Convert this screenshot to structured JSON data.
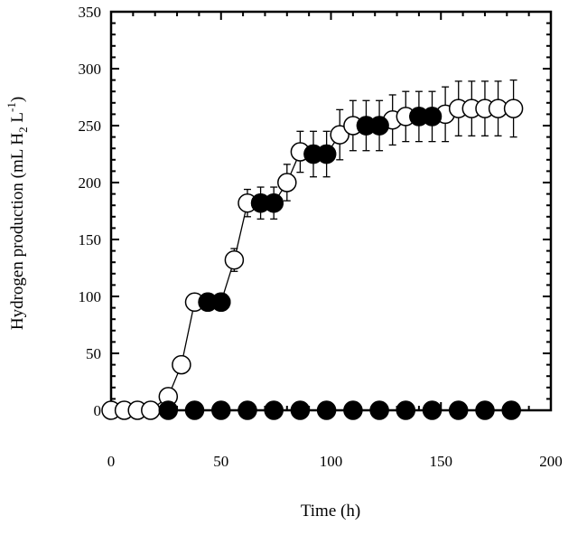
{
  "chart_data": {
    "type": "scatter",
    "xlabel": "Time (h)",
    "ylabel": {
      "prefix": "Hydrogen production (mL H",
      "sub": "2",
      "mid": " L",
      "sup": "-1",
      "suffix": ")"
    },
    "xlim": [
      0,
      200
    ],
    "ylim": [
      0,
      350
    ],
    "xticks": [
      0,
      50,
      100,
      150,
      200
    ],
    "yticks": [
      0,
      50,
      100,
      150,
      200,
      250,
      300,
      350
    ],
    "xtick_labels": [
      "0",
      "50",
      "100",
      "150",
      "200"
    ],
    "ytick_labels": [
      "0",
      "50",
      "100",
      "150",
      "200",
      "250",
      "300",
      "350"
    ],
    "grid": false,
    "legend": "none",
    "series": [
      {
        "marker": "open-circle",
        "line": true,
        "error_bars": true,
        "points": [
          {
            "x": 0,
            "y": 0,
            "err": 0
          },
          {
            "x": 6,
            "y": 0,
            "err": 0
          },
          {
            "x": 12,
            "y": 0,
            "err": 0
          },
          {
            "x": 18,
            "y": 0,
            "err": 0
          },
          {
            "x": 26,
            "y": 12,
            "err": 4
          },
          {
            "x": 32,
            "y": 40,
            "err": 5
          },
          {
            "x": 38,
            "y": 95,
            "err": 5
          },
          {
            "x": 44,
            "y": 95,
            "err": 5
          },
          {
            "x": 50,
            "y": 95,
            "err": 5
          },
          {
            "x": 56,
            "y": 132,
            "err": 10
          },
          {
            "x": 62,
            "y": 182,
            "err": 12
          },
          {
            "x": 68,
            "y": 182,
            "err": 14
          },
          {
            "x": 74,
            "y": 182,
            "err": 14
          },
          {
            "x": 80,
            "y": 200,
            "err": 16
          },
          {
            "x": 86,
            "y": 227,
            "err": 18
          },
          {
            "x": 92,
            "y": 225,
            "err": 20
          },
          {
            "x": 98,
            "y": 225,
            "err": 20
          },
          {
            "x": 104,
            "y": 242,
            "err": 22
          },
          {
            "x": 110,
            "y": 250,
            "err": 22
          },
          {
            "x": 116,
            "y": 250,
            "err": 22
          },
          {
            "x": 122,
            "y": 250,
            "err": 22
          },
          {
            "x": 128,
            "y": 255,
            "err": 22
          },
          {
            "x": 134,
            "y": 258,
            "err": 22
          },
          {
            "x": 140,
            "y": 258,
            "err": 22
          },
          {
            "x": 146,
            "y": 258,
            "err": 22
          },
          {
            "x": 152,
            "y": 260,
            "err": 24
          },
          {
            "x": 158,
            "y": 265,
            "err": 24
          },
          {
            "x": 164,
            "y": 265,
            "err": 24
          },
          {
            "x": 170,
            "y": 265,
            "err": 24
          },
          {
            "x": 176,
            "y": 265,
            "err": 24
          },
          {
            "x": 183,
            "y": 265,
            "err": 25
          }
        ]
      },
      {
        "marker": "filled-circle",
        "line": false,
        "error_bars": false,
        "points": [
          {
            "x": 26,
            "y": 0
          },
          {
            "x": 38,
            "y": 0
          },
          {
            "x": 50,
            "y": 0
          },
          {
            "x": 62,
            "y": 0
          },
          {
            "x": 74,
            "y": 0
          },
          {
            "x": 86,
            "y": 0
          },
          {
            "x": 98,
            "y": 0
          },
          {
            "x": 110,
            "y": 0
          },
          {
            "x": 122,
            "y": 0
          },
          {
            "x": 134,
            "y": 0
          },
          {
            "x": 146,
            "y": 0
          },
          {
            "x": 158,
            "y": 0
          },
          {
            "x": 170,
            "y": 0
          },
          {
            "x": 182,
            "y": 0
          },
          {
            "x": 44,
            "y": 95
          },
          {
            "x": 50,
            "y": 95
          },
          {
            "x": 68,
            "y": 182
          },
          {
            "x": 74,
            "y": 182
          },
          {
            "x": 92,
            "y": 225
          },
          {
            "x": 98,
            "y": 225
          },
          {
            "x": 116,
            "y": 250
          },
          {
            "x": 122,
            "y": 250
          },
          {
            "x": 140,
            "y": 258
          },
          {
            "x": 146,
            "y": 258
          }
        ]
      }
    ]
  }
}
